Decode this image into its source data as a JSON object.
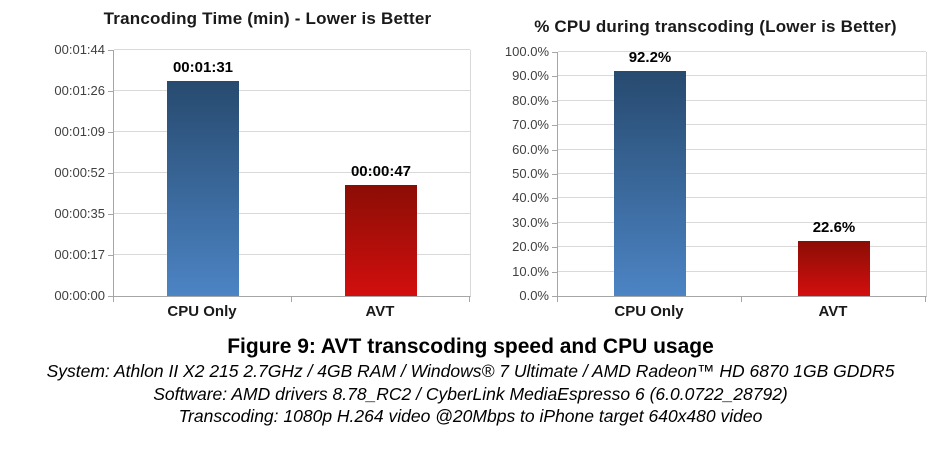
{
  "chart_data": [
    {
      "type": "bar",
      "title": "Trancoding Time (min) - Lower is Better",
      "categories": [
        "CPU Only",
        "AVT"
      ],
      "values": [
        91,
        47
      ],
      "value_labels": [
        "00:01:31",
        "00:00:47"
      ],
      "unit": "seconds",
      "ylim": [
        0,
        104
      ],
      "grid": true,
      "legend": "none",
      "yticks": [
        {
          "v": 104,
          "label": "00:01:44"
        },
        {
          "v": 86.667,
          "label": "00:01:26"
        },
        {
          "v": 69.333,
          "label": "00:01:09"
        },
        {
          "v": 52,
          "label": "00:00:52"
        },
        {
          "v": 34.667,
          "label": "00:00:35"
        },
        {
          "v": 17.333,
          "label": "00:00:17"
        },
        {
          "v": 0,
          "label": "00:00:00"
        }
      ],
      "bar_colors": [
        {
          "top": "#274a6f",
          "bottom": "#4c84c4"
        },
        {
          "top": "#8b0d05",
          "bottom": "#d20f0e"
        }
      ]
    },
    {
      "type": "bar",
      "title": "% CPU during transcoding (Lower is Better)",
      "categories": [
        "CPU Only",
        "AVT"
      ],
      "values": [
        92.2,
        22.6
      ],
      "value_labels": [
        "92.2%",
        "22.6%"
      ],
      "unit": "percent",
      "ylim": [
        0,
        100
      ],
      "grid": true,
      "legend": "none",
      "yticks": [
        {
          "v": 100,
          "label": "100.0%"
        },
        {
          "v": 90,
          "label": "90.0%"
        },
        {
          "v": 80,
          "label": "80.0%"
        },
        {
          "v": 70,
          "label": "70.0%"
        },
        {
          "v": 60,
          "label": "60.0%"
        },
        {
          "v": 50,
          "label": "50.0%"
        },
        {
          "v": 40,
          "label": "40.0%"
        },
        {
          "v": 30,
          "label": "30.0%"
        },
        {
          "v": 20,
          "label": "20.0%"
        },
        {
          "v": 10,
          "label": "10.0%"
        },
        {
          "v": 0,
          "label": "0.0%"
        }
      ],
      "bar_colors": [
        {
          "top": "#274a6f",
          "bottom": "#4c84c4"
        },
        {
          "top": "#8b0d05",
          "bottom": "#d20f0e"
        }
      ]
    }
  ],
  "colors": {
    "gridline": "#d9d9d9",
    "axis": "#a6a6a6",
    "tick_text": "#404040",
    "title_text": "#1a1a1a"
  },
  "caption": {
    "title": "Figure 9: AVT transcoding speed and CPU usage",
    "lines": [
      "System: Athlon II X2 215 2.7GHz / 4GB RAM / Windows® 7 Ultimate / AMD Radeon™ HD 6870 1GB GDDR5",
      "Software: AMD drivers 8.78_RC2 / CyberLink MediaEspresso 6 (6.0.0722_28792)",
      "Transcoding: 1080p H.264 video @20Mbps to iPhone target 640x480 video"
    ]
  }
}
